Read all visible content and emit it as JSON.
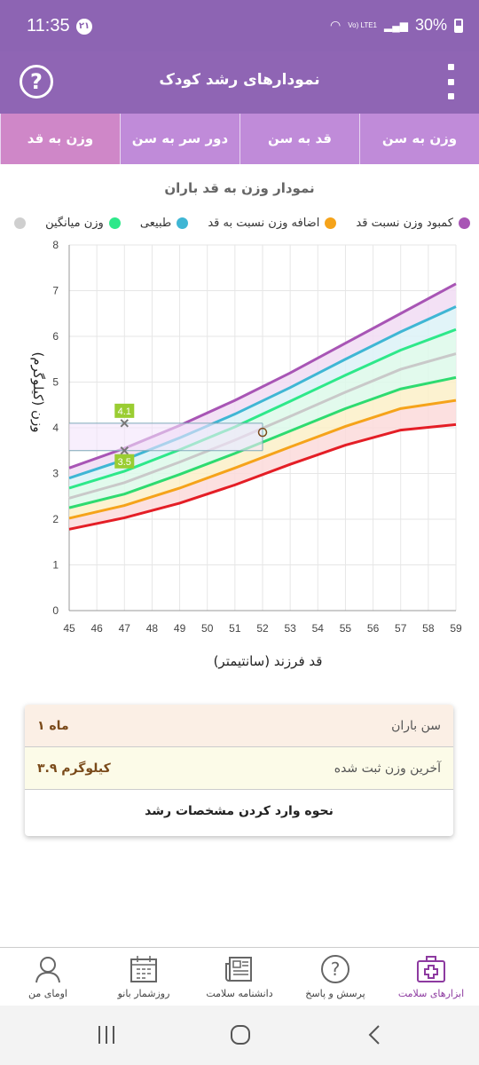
{
  "status": {
    "time": "11:35",
    "badge": "۲۱",
    "signal": "Vo) LTE1",
    "battery": "30%"
  },
  "app": {
    "title": "نمودارهای رشد کودک",
    "help_icon": "help-circle-icon",
    "menu_icon": "more-vertical-icon"
  },
  "tabs": [
    {
      "label": "وزن به سن",
      "active": false
    },
    {
      "label": "قد به سن",
      "active": false
    },
    {
      "label": "دور سر به سن",
      "active": false
    },
    {
      "label": "وزن به قد",
      "active": true
    }
  ],
  "chart_title": "نمودار وزن به قد باران",
  "legend": [
    {
      "label": "کمبود وزن نسبت قد",
      "color": "#a855b5"
    },
    {
      "label": "اضافه وزن نسبت به قد",
      "color": "#f5a31a"
    },
    {
      "label": "طبیعی",
      "color": "#3fb6d4"
    },
    {
      "label": "وزن میانگین",
      "color": "#2ee88a"
    },
    {
      "label": "",
      "color": "#cfcfcf"
    }
  ],
  "chart_data": {
    "type": "line",
    "xlabel": "قد فرزند (سانتیمتر)",
    "ylabel": "وزن (کیلوگرم)",
    "xlim": [
      45,
      59
    ],
    "ylim": [
      0,
      8
    ],
    "x_ticks": [
      "45",
      "46",
      "47",
      "48",
      "49",
      "50",
      "51",
      "52",
      "53",
      "54",
      "55",
      "56",
      "57",
      "58",
      "59"
    ],
    "y_ticks": [
      "0",
      "1",
      "2",
      "3",
      "4",
      "5",
      "6",
      "7",
      "8"
    ],
    "x": [
      45,
      47,
      49,
      51,
      53,
      55,
      57,
      59
    ],
    "series": [
      {
        "color": "#a855b5",
        "values": [
          3.12,
          3.55,
          4.05,
          4.6,
          5.2,
          5.85,
          6.5,
          7.15
        ]
      },
      {
        "color": "#3fb6d4",
        "values": [
          2.9,
          3.3,
          3.78,
          4.3,
          4.88,
          5.5,
          6.1,
          6.65
        ]
      },
      {
        "color": "#2ee88a",
        "values": [
          2.68,
          3.05,
          3.52,
          4.02,
          4.58,
          5.15,
          5.7,
          6.15
        ]
      },
      {
        "color": "#c9c9c9",
        "values": [
          2.46,
          2.8,
          3.25,
          3.73,
          4.25,
          4.78,
          5.28,
          5.62
        ]
      },
      {
        "color": "#2edb70",
        "values": [
          2.25,
          2.55,
          2.98,
          3.44,
          3.93,
          4.42,
          4.85,
          5.1
        ]
      },
      {
        "color": "#f5a31a",
        "values": [
          2.02,
          2.3,
          2.68,
          3.12,
          3.58,
          4.03,
          4.42,
          4.6
        ]
      },
      {
        "color": "#e41e26",
        "values": [
          1.78,
          2.03,
          2.35,
          2.75,
          3.2,
          3.62,
          3.95,
          4.07
        ]
      }
    ],
    "band_colors": [
      "#f1dcf3",
      "#dcf2f7",
      "#ddf9ea",
      "#ddf9ea",
      "#fbf0c8",
      "#fbdada"
    ],
    "points": [
      {
        "x": 47,
        "y": 4.1,
        "label": "4.1"
      },
      {
        "x": 47,
        "y": 3.5,
        "label": "3.5"
      },
      {
        "x": 52,
        "y": 3.9,
        "label": ""
      }
    ],
    "grid": true
  },
  "info": {
    "age_label": "سن باران",
    "age_value": "۱ ماه",
    "weight_label": "آخرین وزن ثبت شده",
    "weight_value": "۳.۹ کیلوگرم",
    "link": "نحوه وارد کردن مشخصات رشد"
  },
  "nav": [
    {
      "label": "ابزارهای سلامت",
      "icon": "medical-kit-icon",
      "active": true
    },
    {
      "label": "پرسش و پاسخ",
      "icon": "question-circle-icon",
      "active": false
    },
    {
      "label": "دانشنامه سلامت",
      "icon": "newspaper-icon",
      "active": false
    },
    {
      "label": "روزشمار بانو",
      "icon": "calendar-icon",
      "active": false
    },
    {
      "label": "اومای من",
      "icon": "user-profile-icon",
      "active": false
    }
  ]
}
